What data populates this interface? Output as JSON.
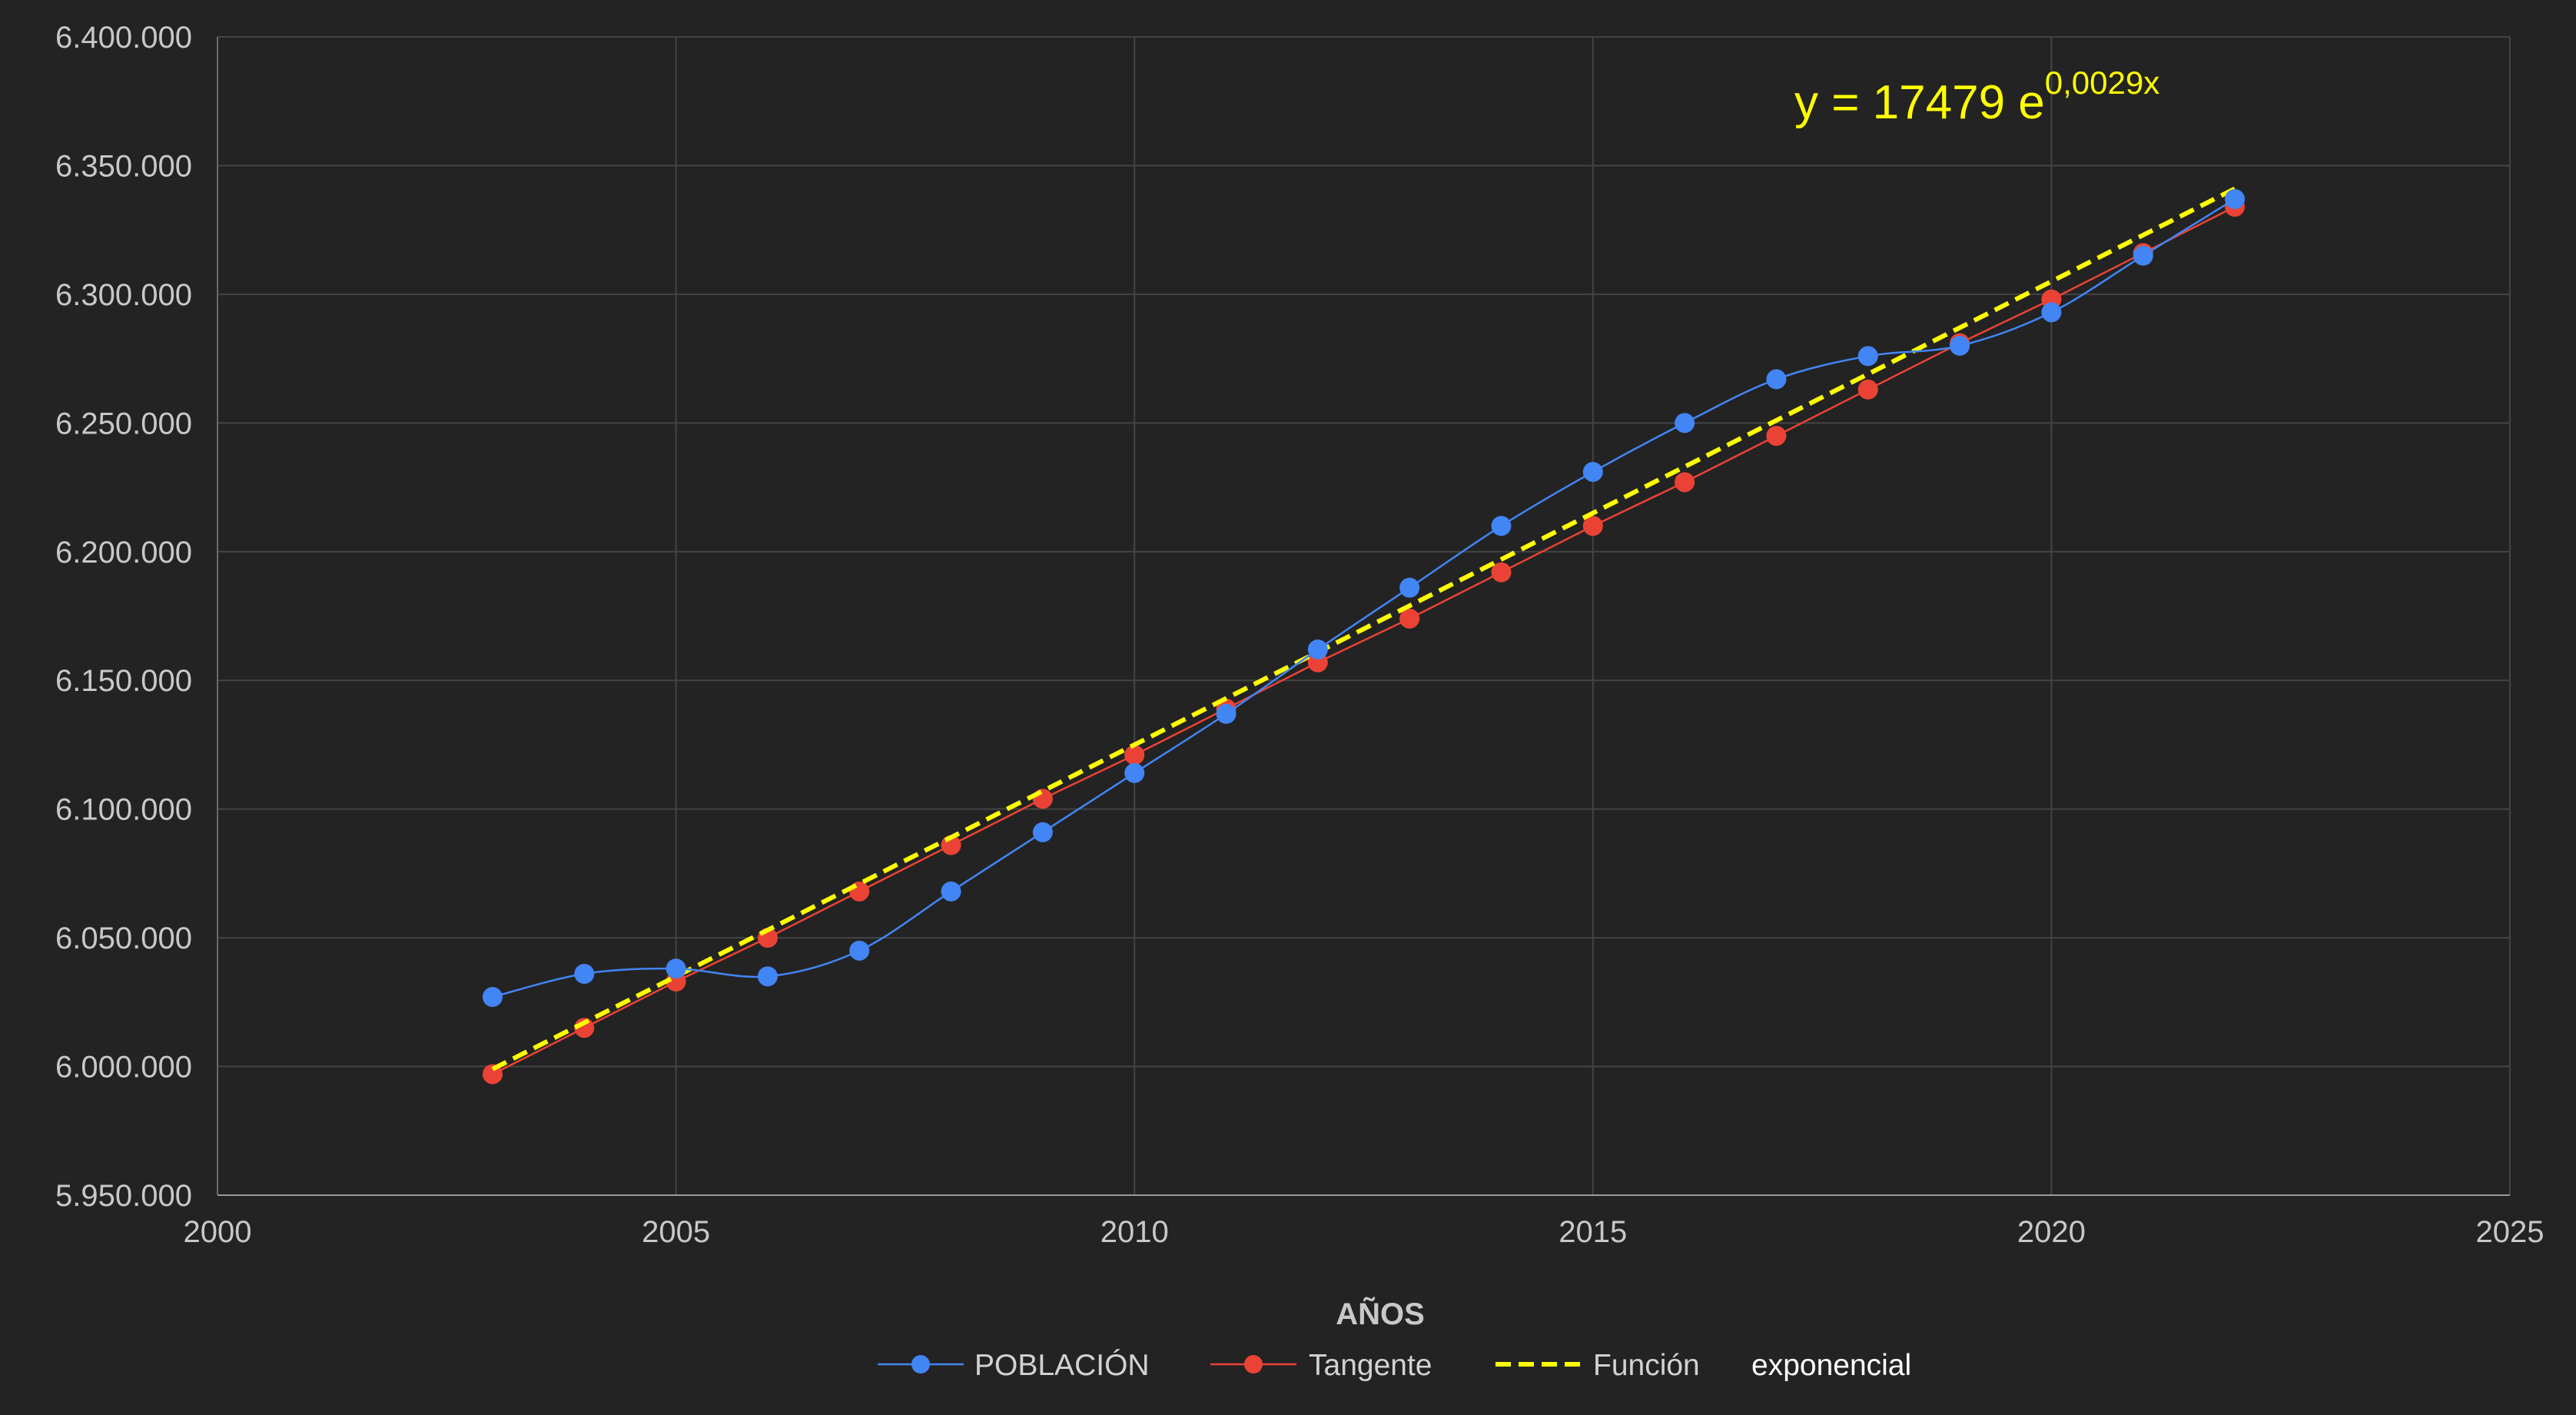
{
  "chart_data": {
    "type": "line",
    "title": "",
    "xlabel": "AÑOS",
    "ylabel": "",
    "xlim": [
      2000,
      2025
    ],
    "ylim": [
      5950000,
      6400000
    ],
    "xticks": [
      2000,
      2005,
      2010,
      2015,
      2020,
      2025
    ],
    "xtick_labels": [
      "2000",
      "2005",
      "2010",
      "2015",
      "2020",
      "2025"
    ],
    "yticks": [
      5950000,
      6000000,
      6050000,
      6100000,
      6150000,
      6200000,
      6250000,
      6300000,
      6350000,
      6400000
    ],
    "ytick_labels": [
      "5.950.000",
      "6.000.000",
      "6.050.000",
      "6.100.000",
      "6.150.000",
      "6.200.000",
      "6.250.000",
      "6.300.000",
      "6.350.000",
      "6.400.000"
    ],
    "grid": true,
    "legend_position": "bottom",
    "equation": {
      "base": "y = 17479 e",
      "exponent": "0,0029x"
    },
    "series": [
      {
        "name": "POBLACIÓN",
        "color": "#4285f4",
        "line_style": "solid",
        "markers": true,
        "smooth": true,
        "x": [
          2003,
          2004,
          2005,
          2006,
          2007,
          2008,
          2009,
          2010,
          2011,
          2012,
          2013,
          2014,
          2015,
          2016,
          2017,
          2018,
          2019,
          2020,
          2021,
          2022
        ],
        "y": [
          6027000,
          6036000,
          6038000,
          6035000,
          6045000,
          6068000,
          6091000,
          6114000,
          6137000,
          6162000,
          6186000,
          6210000,
          6231000,
          6250000,
          6267000,
          6276000,
          6280000,
          6293000,
          6315000,
          6337000
        ]
      },
      {
        "name": "Tangente",
        "color": "#ea4335",
        "line_style": "solid",
        "markers": true,
        "smooth": false,
        "x": [
          2003,
          2004,
          2005,
          2006,
          2007,
          2008,
          2009,
          2010,
          2011,
          2012,
          2013,
          2014,
          2015,
          2016,
          2017,
          2018,
          2019,
          2020,
          2021,
          2022
        ],
        "y": [
          5997000,
          6015000,
          6033000,
          6050000,
          6068000,
          6086000,
          6104000,
          6121000,
          6139000,
          6157000,
          6174000,
          6192000,
          6210000,
          6227000,
          6245000,
          6263000,
          6281000,
          6298000,
          6316000,
          6334000
        ]
      },
      {
        "name": "Función",
        "color": "#ffff00",
        "line_style": "dashed",
        "markers": false,
        "smooth": false,
        "x": [
          2003,
          2022
        ],
        "y": [
          5999000,
          6341000
        ]
      }
    ],
    "legend_extra": "exponencial"
  }
}
